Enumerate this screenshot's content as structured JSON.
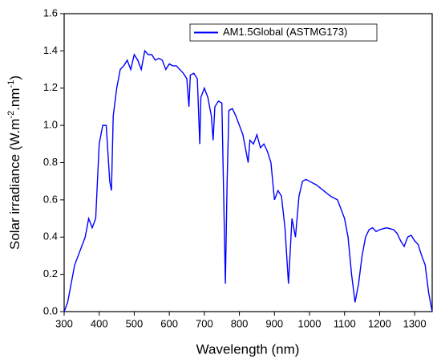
{
  "chart_data": {
    "type": "line",
    "xlabel": "Wavelength (nm)",
    "ylabel": [
      "Solar irradiance (W.m",
      "-2",
      ".nm",
      "-1",
      ")"
    ],
    "legend": "top-right",
    "xlim": [
      300,
      1350
    ],
    "ylim": [
      0,
      1.6
    ],
    "xticks": [
      300,
      400,
      500,
      600,
      700,
      800,
      900,
      1000,
      1100,
      1200,
      1300
    ],
    "yticks": [
      {
        "value": 0,
        "label": "0.0"
      },
      0.2,
      0.4,
      0.6,
      0.8,
      {
        "value": 1,
        "label": "1.0"
      },
      1.2,
      1.4,
      1.6
    ],
    "x": [
      300,
      310,
      320,
      330,
      340,
      350,
      360,
      370,
      380,
      390,
      400,
      410,
      420,
      430,
      435,
      440,
      450,
      460,
      470,
      480,
      490,
      500,
      510,
      520,
      530,
      540,
      550,
      560,
      570,
      580,
      590,
      600,
      610,
      620,
      630,
      640,
      650,
      656,
      660,
      670,
      680,
      687,
      690,
      700,
      710,
      720,
      725,
      730,
      740,
      750,
      760,
      765,
      770,
      780,
      790,
      800,
      810,
      820,
      825,
      830,
      840,
      850,
      860,
      870,
      880,
      890,
      900,
      910,
      920,
      930,
      940,
      950,
      960,
      970,
      980,
      990,
      1000,
      1020,
      1040,
      1060,
      1080,
      1100,
      1110,
      1120,
      1130,
      1140,
      1150,
      1160,
      1170,
      1180,
      1190,
      1200,
      1220,
      1240,
      1250,
      1260,
      1270,
      1280,
      1290,
      1300,
      1310,
      1320,
      1330,
      1340,
      1350
    ],
    "series": [
      {
        "name": "AM1.5Global (ASTMG173)",
        "color": "#0000ff",
        "values": [
          0,
          0.05,
          0.15,
          0.25,
          0.3,
          0.35,
          0.4,
          0.5,
          0.45,
          0.5,
          0.9,
          1.0,
          1.0,
          0.7,
          0.65,
          1.05,
          1.2,
          1.3,
          1.32,
          1.35,
          1.3,
          1.38,
          1.35,
          1.3,
          1.4,
          1.38,
          1.38,
          1.35,
          1.36,
          1.35,
          1.3,
          1.33,
          1.32,
          1.32,
          1.3,
          1.28,
          1.25,
          1.1,
          1.27,
          1.28,
          1.25,
          0.9,
          1.15,
          1.2,
          1.15,
          1.05,
          0.92,
          1.1,
          1.13,
          1.12,
          0.15,
          0.7,
          1.08,
          1.09,
          1.05,
          1.0,
          0.95,
          0.85,
          0.8,
          0.92,
          0.9,
          0.95,
          0.88,
          0.9,
          0.86,
          0.8,
          0.6,
          0.65,
          0.62,
          0.45,
          0.15,
          0.5,
          0.4,
          0.62,
          0.7,
          0.71,
          0.7,
          0.68,
          0.65,
          0.62,
          0.6,
          0.5,
          0.4,
          0.2,
          0.05,
          0.15,
          0.3,
          0.4,
          0.44,
          0.45,
          0.43,
          0.44,
          0.45,
          0.44,
          0.42,
          0.38,
          0.35,
          0.4,
          0.41,
          0.38,
          0.36,
          0.3,
          0.25,
          0.1,
          0
        ]
      }
    ]
  }
}
